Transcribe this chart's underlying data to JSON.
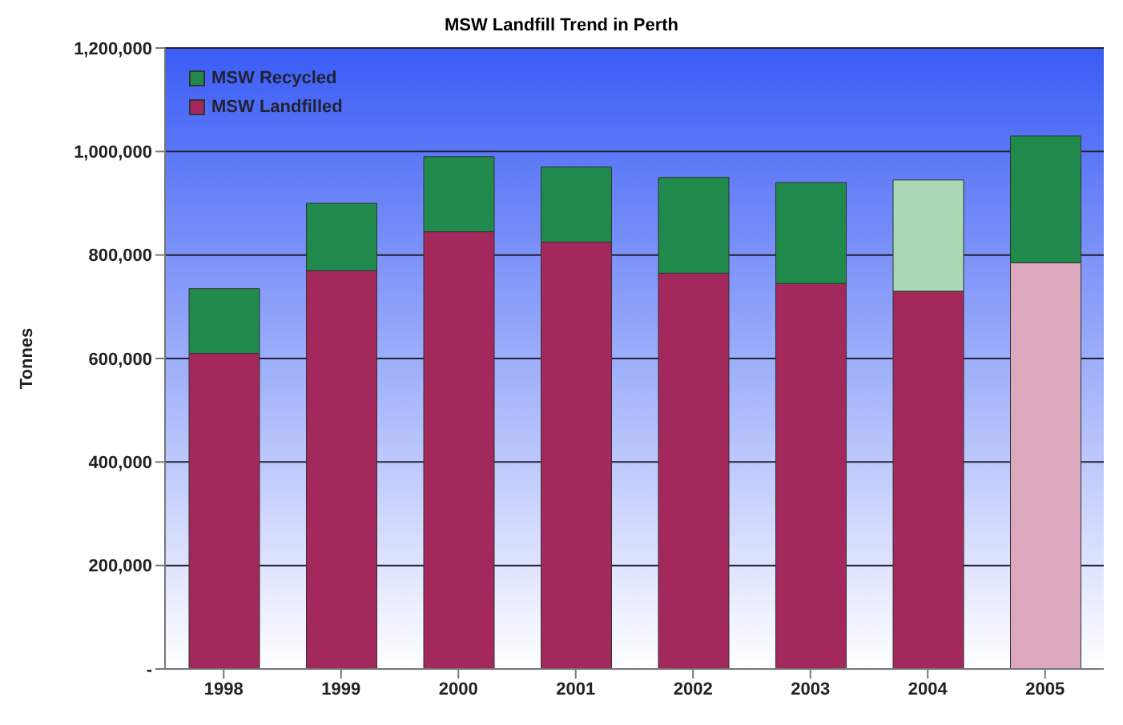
{
  "chart_data": {
    "type": "bar",
    "title": "MSW Landfill Trend in Perth",
    "ylabel": "Tonnes",
    "categories": [
      "1998",
      "1999",
      "2000",
      "2001",
      "2002",
      "2003",
      "2004",
      "2005"
    ],
    "stacked": true,
    "series": [
      {
        "name": "MSW Landfilled",
        "color": "#a3285c",
        "colors": [
          "#a3285c",
          "#a3285c",
          "#a3285c",
          "#a3285c",
          "#a3285c",
          "#a3285c",
          "#a3285c",
          "#dca8bd"
        ],
        "values": [
          610000,
          770000,
          845000,
          825000,
          765000,
          745000,
          730000,
          785000
        ]
      },
      {
        "name": "MSW Recycled",
        "color": "#1f8a4c",
        "colors": [
          "#1f8a4c",
          "#1f8a4c",
          "#1f8a4c",
          "#1f8a4c",
          "#1f8a4c",
          "#1f8a4c",
          "#a9d8b4",
          "#1f8a4c"
        ],
        "values": [
          125000,
          130000,
          145000,
          145000,
          185000,
          195000,
          215000,
          245000
        ]
      }
    ],
    "ylim": [
      0,
      1200000
    ],
    "yticks": [
      {
        "value": 0,
        "label": "-"
      },
      {
        "value": 200000,
        "label": "200,000"
      },
      {
        "value": 400000,
        "label": "400,000"
      },
      {
        "value": 600000,
        "label": "600,000"
      },
      {
        "value": 800000,
        "label": "800,000"
      },
      {
        "value": 1000000,
        "label": "1,000,000"
      },
      {
        "value": 1200000,
        "label": "1,200,000"
      }
    ],
    "grid": "y",
    "legend": "top left"
  }
}
